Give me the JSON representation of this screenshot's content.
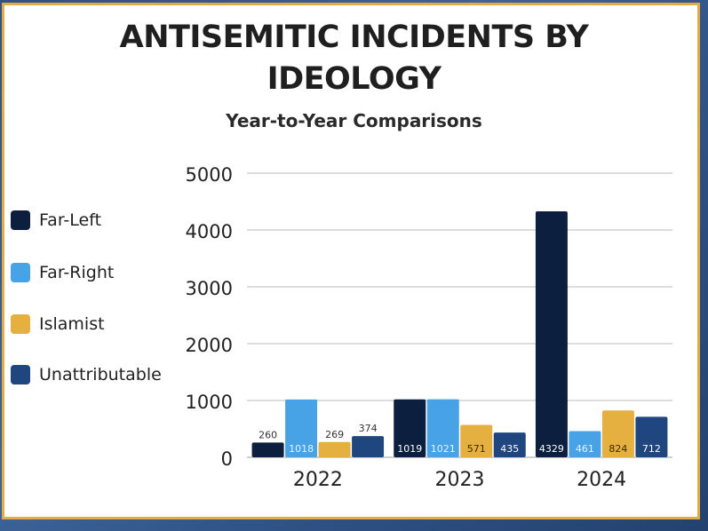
{
  "chart_data": {
    "type": "bar",
    "title": "ANTISEMITIC INCIDENTS BY IDEOLOGY",
    "title_lines": [
      "ANTISEMITIC INCIDENTS BY",
      "IDEOLOGY"
    ],
    "subtitle": "Year-to-Year Comparisons",
    "xlabel": "",
    "ylabel": "",
    "categories": [
      "2022",
      "2023",
      "2024"
    ],
    "ylim": [
      0,
      5000
    ],
    "yticks": [
      "0",
      "1000",
      "2000",
      "3000",
      "4000",
      "5000"
    ],
    "grid": true,
    "legend_position": "left",
    "series": [
      {
        "name": "Far-Left",
        "color": "#0d1f3f",
        "values": [
          260,
          1019,
          4329
        ],
        "labels": [
          "260",
          "1019",
          "4329"
        ]
      },
      {
        "name": "Far-Right",
        "color": "#48a2e6",
        "values": [
          1018,
          1021,
          461
        ],
        "labels": [
          "1018",
          "1021",
          "461"
        ]
      },
      {
        "name": "Islamist",
        "color": "#e6b040",
        "values": [
          269,
          571,
          824
        ],
        "labels": [
          "269",
          "571",
          "824"
        ]
      },
      {
        "name": "Unattributable",
        "color": "#20467f",
        "values": [
          374,
          435,
          712
        ],
        "labels": [
          "374",
          "435",
          "712"
        ]
      }
    ]
  }
}
